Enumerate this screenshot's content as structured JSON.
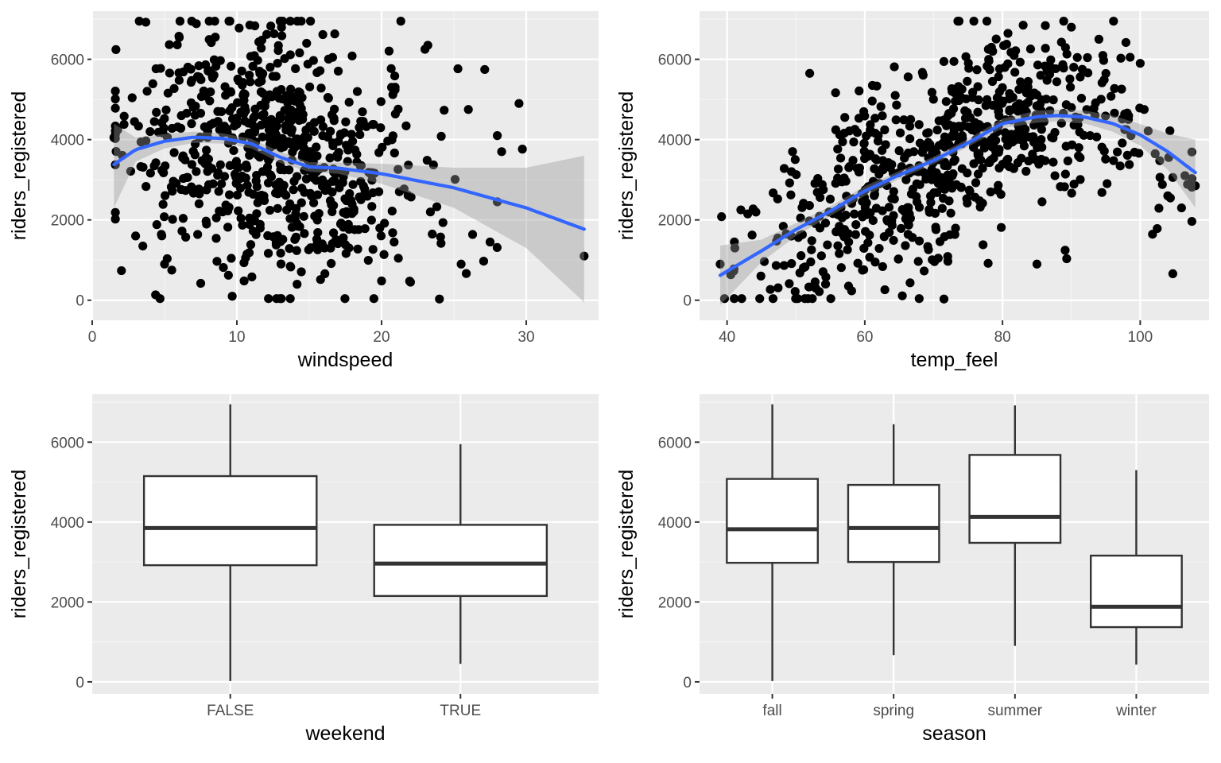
{
  "colors": {
    "panel": "#ebebeb",
    "grid_major": "#ffffff",
    "grid_minor": "#f5f5f5",
    "point": "#000000",
    "smooth_line": "#3366ff",
    "ribbon": "#999999",
    "box_fill": "#ffffff",
    "box_stroke": "#333333",
    "tick_text": "#4d4d4d",
    "axis_title": "#000000"
  },
  "chart_data": [
    {
      "id": "windspeed",
      "type": "scatter",
      "xlabel": "windspeed",
      "ylabel": "riders_registered",
      "xlim": [
        0,
        35
      ],
      "ylim": [
        -500,
        7200
      ],
      "xticks": [
        0,
        10,
        20,
        30
      ],
      "yticks": [
        0,
        2000,
        4000,
        6000
      ],
      "xtick_labels": [
        "0",
        "10",
        "20",
        "30"
      ],
      "ytick_labels": [
        "0",
        "2000",
        "4000",
        "6000"
      ],
      "grid": true,
      "n_points": 731,
      "points_sample": [
        [
          1.5,
          4050
        ],
        [
          3.0,
          1600
        ],
        [
          3.5,
          1350
        ],
        [
          4.0,
          4200
        ],
        [
          5.0,
          900
        ],
        [
          5.5,
          750
        ],
        [
          7.5,
          420
        ],
        [
          10.5,
          480
        ],
        [
          23.0,
          6250
        ],
        [
          23.2,
          6350
        ],
        [
          24.0,
          30
        ],
        [
          29.5,
          4900
        ],
        [
          34.0,
          1100
        ],
        [
          26.0,
          4750
        ],
        [
          28.0,
          4100
        ],
        [
          28.3,
          3700
        ],
        [
          28.0,
          2450
        ],
        [
          27.5,
          1450
        ],
        [
          25.5,
          900
        ],
        [
          22.0,
          450
        ],
        [
          20.0,
          480
        ]
      ],
      "smooth": {
        "x": [
          1.5,
          3,
          5,
          7,
          9,
          11,
          13,
          15,
          17,
          20,
          25,
          30,
          34
        ],
        "y": [
          3380,
          3750,
          3960,
          4060,
          4030,
          3900,
          3560,
          3320,
          3290,
          3150,
          2800,
          2300,
          1770
        ],
        "lower": [
          2300,
          3450,
          3780,
          3920,
          3900,
          3780,
          3420,
          3200,
          3150,
          2900,
          2300,
          1300,
          -50
        ],
        "upper": [
          4400,
          4050,
          4140,
          4200,
          4160,
          4020,
          3700,
          3440,
          3430,
          3400,
          3300,
          3300,
          3600
        ]
      }
    },
    {
      "id": "temp_feel",
      "type": "scatter",
      "xlabel": "temp_feel",
      "ylabel": "riders_registered",
      "xlim": [
        36,
        110
      ],
      "ylim": [
        -500,
        7200
      ],
      "xticks": [
        40,
        60,
        80,
        100
      ],
      "yticks": [
        0,
        2000,
        4000,
        6000
      ],
      "xtick_labels": [
        "40",
        "60",
        "80",
        "100"
      ],
      "ytick_labels": [
        "0",
        "2000",
        "4000",
        "6000"
      ],
      "grid": true,
      "n_points": 731,
      "points_sample": [
        [
          39,
          900
        ],
        [
          41,
          780
        ],
        [
          42,
          2250
        ],
        [
          43,
          2150
        ],
        [
          52,
          5650
        ],
        [
          71.5,
          30
        ],
        [
          85,
          900
        ],
        [
          104,
          2600
        ],
        [
          106,
          2300
        ],
        [
          108,
          2850
        ],
        [
          100,
          5900
        ],
        [
          94,
          6500
        ],
        [
          90,
          6800
        ],
        [
          83,
          6850
        ]
      ],
      "smooth": {
        "x": [
          39,
          45,
          50,
          55,
          60,
          65,
          70,
          75,
          80,
          85,
          88,
          92,
          96,
          100,
          104,
          108
        ],
        "y": [
          620,
          1230,
          1760,
          2220,
          2720,
          3120,
          3480,
          3920,
          4400,
          4570,
          4600,
          4560,
          4400,
          4120,
          3700,
          3180
        ],
        "lower": [
          -120,
          950,
          1600,
          2100,
          2600,
          3020,
          3390,
          3820,
          4280,
          4420,
          4450,
          4400,
          4200,
          3850,
          3250,
          2300
        ],
        "upper": [
          1360,
          1510,
          1920,
          2340,
          2840,
          3220,
          3570,
          4020,
          4520,
          4720,
          4750,
          4720,
          4600,
          4390,
          4150,
          4000
        ]
      }
    },
    {
      "id": "weekend",
      "type": "box",
      "xlabel": "weekend",
      "ylabel": "riders_registered",
      "ylim": [
        -300,
        7200
      ],
      "yticks": [
        0,
        2000,
        4000,
        6000
      ],
      "ytick_labels": [
        "0",
        "2000",
        "4000",
        "6000"
      ],
      "categories": [
        "FALSE",
        "TRUE"
      ],
      "boxes": [
        {
          "min": 20,
          "q1": 2920,
          "median": 3850,
          "q3": 5150,
          "max": 6950
        },
        {
          "min": 450,
          "q1": 2150,
          "median": 2960,
          "q3": 3930,
          "max": 5950
        }
      ]
    },
    {
      "id": "season",
      "type": "box",
      "xlabel": "season",
      "ylabel": "riders_registered",
      "ylim": [
        -300,
        7200
      ],
      "yticks": [
        0,
        2000,
        4000,
        6000
      ],
      "ytick_labels": [
        "0",
        "2000",
        "4000",
        "6000"
      ],
      "categories": [
        "fall",
        "spring",
        "summer",
        "winter"
      ],
      "boxes": [
        {
          "min": 20,
          "q1": 2980,
          "median": 3820,
          "q3": 5080,
          "max": 6950
        },
        {
          "min": 670,
          "q1": 3000,
          "median": 3850,
          "q3": 4930,
          "max": 6450
        },
        {
          "min": 900,
          "q1": 3480,
          "median": 4130,
          "q3": 5680,
          "max": 6920
        },
        {
          "min": 430,
          "q1": 1370,
          "median": 1880,
          "q3": 3160,
          "max": 5300
        }
      ]
    }
  ]
}
